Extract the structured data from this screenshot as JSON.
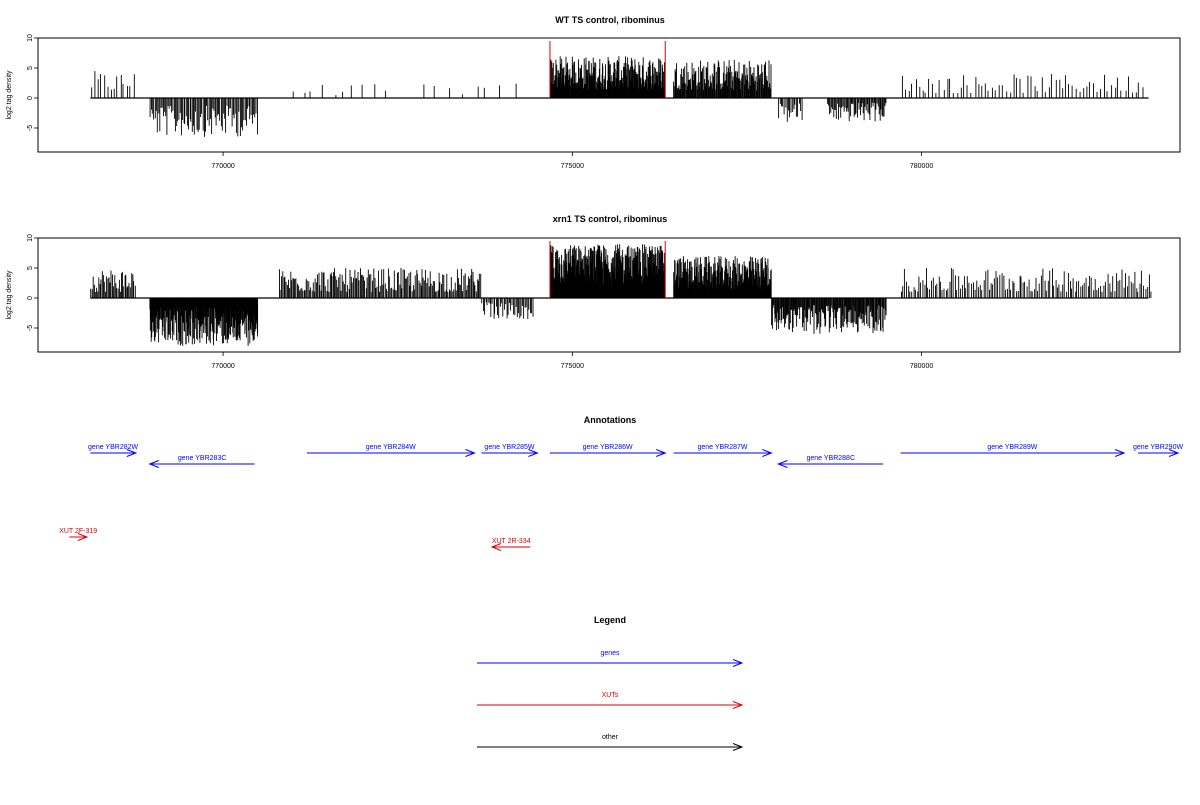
{
  "chart_data": [
    {
      "type": "bar",
      "title": "WT TS control, ribominus",
      "xlabel": "",
      "ylabel": "log2 tag density",
      "xlim": [
        767350,
        783700
      ],
      "ylim": [
        -9,
        10
      ],
      "x_ticks": [
        770000,
        775000,
        780000
      ],
      "x_tick_labels": [
        "770000",
        "775000",
        "780000"
      ],
      "y_ticks": [
        -5,
        0,
        5,
        10
      ],
      "y_tick_labels": [
        "-5",
        "0",
        "5",
        "10"
      ],
      "highlight_lines_x": [
        774680,
        776330
      ],
      "highlight_color": "#e00000",
      "bar_color": "#000000",
      "grid": false,
      "regions": [
        {
          "start": 768100,
          "end": 768750,
          "sign": 1,
          "count": 14,
          "max": 4.5
        },
        {
          "start": 768950,
          "end": 770500,
          "sign": -1,
          "count": 90,
          "max": 6.5
        },
        {
          "start": 770950,
          "end": 772400,
          "sign": 1,
          "count": 10,
          "max": 2.3
        },
        {
          "start": 772800,
          "end": 774300,
          "sign": 1,
          "count": 8,
          "max": 2.5
        },
        {
          "start": 774680,
          "end": 776330,
          "sign": 1,
          "count": 260,
          "max": 7.0
        },
        {
          "start": 776450,
          "end": 777850,
          "sign": 1,
          "count": 150,
          "max": 6.5
        },
        {
          "start": 777950,
          "end": 778300,
          "sign": -1,
          "count": 18,
          "max": 4.2
        },
        {
          "start": 778650,
          "end": 779500,
          "sign": -1,
          "count": 60,
          "max": 4.0
        },
        {
          "start": 779700,
          "end": 783200,
          "sign": 1,
          "count": 70,
          "max": 4.0
        }
      ]
    },
    {
      "type": "bar",
      "title": "xrn1 TS control, ribominus",
      "xlabel": "",
      "ylabel": "log2 tag density",
      "xlim": [
        767350,
        783700
      ],
      "ylim": [
        -9,
        10
      ],
      "x_ticks": [
        770000,
        775000,
        780000
      ],
      "x_tick_labels": [
        "770000",
        "775000",
        "780000"
      ],
      "y_ticks": [
        -5,
        0,
        5,
        10
      ],
      "y_tick_labels": [
        "-5",
        "0",
        "5",
        "10"
      ],
      "highlight_lines_x": [
        774680,
        776330
      ],
      "highlight_color": "#e00000",
      "bar_color": "#000000",
      "grid": false,
      "regions": [
        {
          "start": 768100,
          "end": 768750,
          "sign": 1,
          "count": 40,
          "max": 5.0
        },
        {
          "start": 768950,
          "end": 770500,
          "sign": -1,
          "count": 260,
          "max": 8.0
        },
        {
          "start": 770800,
          "end": 773700,
          "sign": 1,
          "count": 180,
          "max": 5.0
        },
        {
          "start": 773700,
          "end": 774450,
          "sign": -1,
          "count": 40,
          "max": 3.5
        },
        {
          "start": 774680,
          "end": 776330,
          "sign": 1,
          "count": 420,
          "max": 9.0
        },
        {
          "start": 776450,
          "end": 777850,
          "sign": 1,
          "count": 260,
          "max": 7.0
        },
        {
          "start": 777850,
          "end": 779500,
          "sign": -1,
          "count": 160,
          "max": 6.0
        },
        {
          "start": 779700,
          "end": 783300,
          "sign": 1,
          "count": 140,
          "max": 5.0
        }
      ]
    }
  ],
  "annotations": {
    "title": "Annotations",
    "genes": [
      {
        "label": "gene YBR282W",
        "start": 768100,
        "end": 768750,
        "strand": "+",
        "row": 0
      },
      {
        "label": "gene YBR283C",
        "start": 768950,
        "end": 770450,
        "strand": "-",
        "row": 1
      },
      {
        "label": "gene YBR284W",
        "start": 771200,
        "end": 773600,
        "strand": "+",
        "row": 0
      },
      {
        "label": "gene YBR285W",
        "start": 773700,
        "end": 774500,
        "strand": "+",
        "row": 0
      },
      {
        "label": "gene YBR286W",
        "start": 774680,
        "end": 776330,
        "strand": "+",
        "row": 0
      },
      {
        "label": "gene YBR287W",
        "start": 776450,
        "end": 777850,
        "strand": "+",
        "row": 0
      },
      {
        "label": "gene YBR288C",
        "start": 777950,
        "end": 779450,
        "strand": "-",
        "row": 1
      },
      {
        "label": "gene YBR289W",
        "start": 779700,
        "end": 782900,
        "strand": "+",
        "row": 0
      },
      {
        "label": "gene YBR290W",
        "start": 783100,
        "end": 784100,
        "strand": "+",
        "row": 0
      }
    ],
    "xuts": [
      {
        "label": "XUT 2F-319",
        "start": 767800,
        "end": 768050,
        "strand": "+",
        "row": 2
      },
      {
        "label": "XUT 2R-334",
        "start": 773850,
        "end": 774400,
        "strand": "-",
        "row": 3
      }
    ]
  },
  "legend": {
    "title": "Legend",
    "items": [
      {
        "label": "genes",
        "color": "#0000ff"
      },
      {
        "label": "XUTs",
        "color": "#e00000"
      },
      {
        "label": "other",
        "color": "#000000"
      }
    ]
  },
  "colors": {
    "gene": "#0000ff",
    "xut": "#e00000",
    "axis": "#000000"
  }
}
